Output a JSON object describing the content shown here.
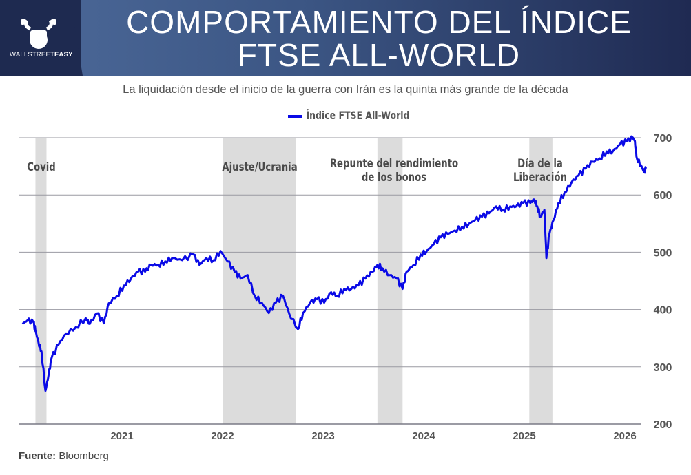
{
  "header": {
    "logo_text_light": "WALLSTREET",
    "logo_text_bold": "EASY",
    "title_line1": "COMPORTAMIENTO DEL ÍNDICE",
    "title_line2": "FTSE ALL-WORLD"
  },
  "source": {
    "label": "Fuente:",
    "value": "Bloomberg"
  },
  "colors": {
    "line": "#0a0ae6",
    "band": "#dcdcdc",
    "header_dark": "#1e2a50"
  },
  "chart_data": {
    "type": "line",
    "subtitle": "La liquidación desde el inicio de la guerra con Irán es la quinta más grande de la década",
    "legend": "Índice FTSE All-World",
    "legend_placement": "top-center",
    "xlim": [
      2020.0,
      2026.38
    ],
    "ylim": [
      200,
      700
    ],
    "yticks": [
      700,
      600,
      500,
      400,
      300,
      200
    ],
    "xticks": [
      {
        "value": 2021,
        "label": "2021"
      },
      {
        "value": 2022,
        "label": "2022"
      },
      {
        "value": 2023,
        "label": "2023"
      },
      {
        "value": 2024,
        "label": "2024"
      },
      {
        "value": 2025,
        "label": "2025"
      },
      {
        "value": 2026,
        "label": "2026"
      }
    ],
    "grid": true,
    "bands": [
      {
        "label": "Covid",
        "start": 2020.14,
        "end": 2020.25
      },
      {
        "label": "Ajuste/Ucrania",
        "start": 2022.0,
        "end": 2022.73
      },
      {
        "label": "Repunte del rendimiento|de los bonos",
        "start": 2023.54,
        "end": 2023.79
      },
      {
        "label": "Día de la|Liberación",
        "start": 2025.05,
        "end": 2025.28
      }
    ],
    "series": [
      {
        "name": "Índice FTSE All-World",
        "x": [
          2020.01,
          2020.06,
          2020.12,
          2020.14,
          2020.17,
          2020.2,
          2020.24,
          2020.27,
          2020.3,
          2020.37,
          2020.44,
          2020.54,
          2020.64,
          2020.68,
          2020.75,
          2020.82,
          2020.87,
          2020.95,
          2021.02,
          2021.09,
          2021.16,
          2021.23,
          2021.29,
          2021.36,
          2021.43,
          2021.5,
          2021.6,
          2021.71,
          2021.77,
          2021.84,
          2021.91,
          2021.98,
          2022.05,
          2022.12,
          2022.18,
          2022.25,
          2022.32,
          2022.39,
          2022.46,
          2022.53,
          2022.6,
          2022.66,
          2022.75,
          2022.8,
          2022.87,
          2022.94,
          2023.01,
          2023.08,
          2023.14,
          2023.21,
          2023.28,
          2023.35,
          2023.42,
          2023.49,
          2023.54,
          2023.59,
          2023.66,
          2023.73,
          2023.79,
          2023.83,
          2023.9,
          2023.97,
          2024.03,
          2024.1,
          2024.17,
          2024.24,
          2024.31,
          2024.38,
          2024.45,
          2024.51,
          2024.58,
          2024.65,
          2024.72,
          2024.79,
          2024.86,
          2024.92,
          2024.99,
          2025.06,
          2025.1,
          2025.13,
          2025.16,
          2025.2,
          2025.22,
          2025.25,
          2025.29,
          2025.34,
          2025.4,
          2025.47,
          2025.54,
          2025.61,
          2025.68,
          2025.75,
          2025.82,
          2025.88,
          2025.95,
          2026.02,
          2026.08,
          2026.1,
          2026.12,
          2026.16,
          2026.19,
          2026.21
        ],
        "y": [
          375,
          381,
          378,
          363,
          343,
          327,
          258,
          285,
          315,
          339,
          357,
          369,
          385,
          375,
          393,
          376,
          411,
          424,
          442,
          454,
          466,
          466,
          478,
          478,
          484,
          490,
          486,
          496,
          478,
          490,
          486,
          502,
          484,
          466,
          454,
          460,
          424,
          412,
          394,
          412,
          424,
          394,
          366,
          394,
          412,
          418,
          412,
          430,
          424,
          436,
          436,
          442,
          454,
          466,
          478,
          472,
          460,
          454,
          436,
          466,
          478,
          496,
          502,
          514,
          526,
          532,
          538,
          544,
          550,
          556,
          562,
          568,
          580,
          574,
          580,
          580,
          586,
          586,
          592,
          580,
          562,
          574,
          490,
          532,
          556,
          586,
          604,
          622,
          634,
          646,
          658,
          664,
          676,
          676,
          688,
          694,
          700,
          694,
          664,
          652,
          640,
          646
        ]
      }
    ]
  }
}
